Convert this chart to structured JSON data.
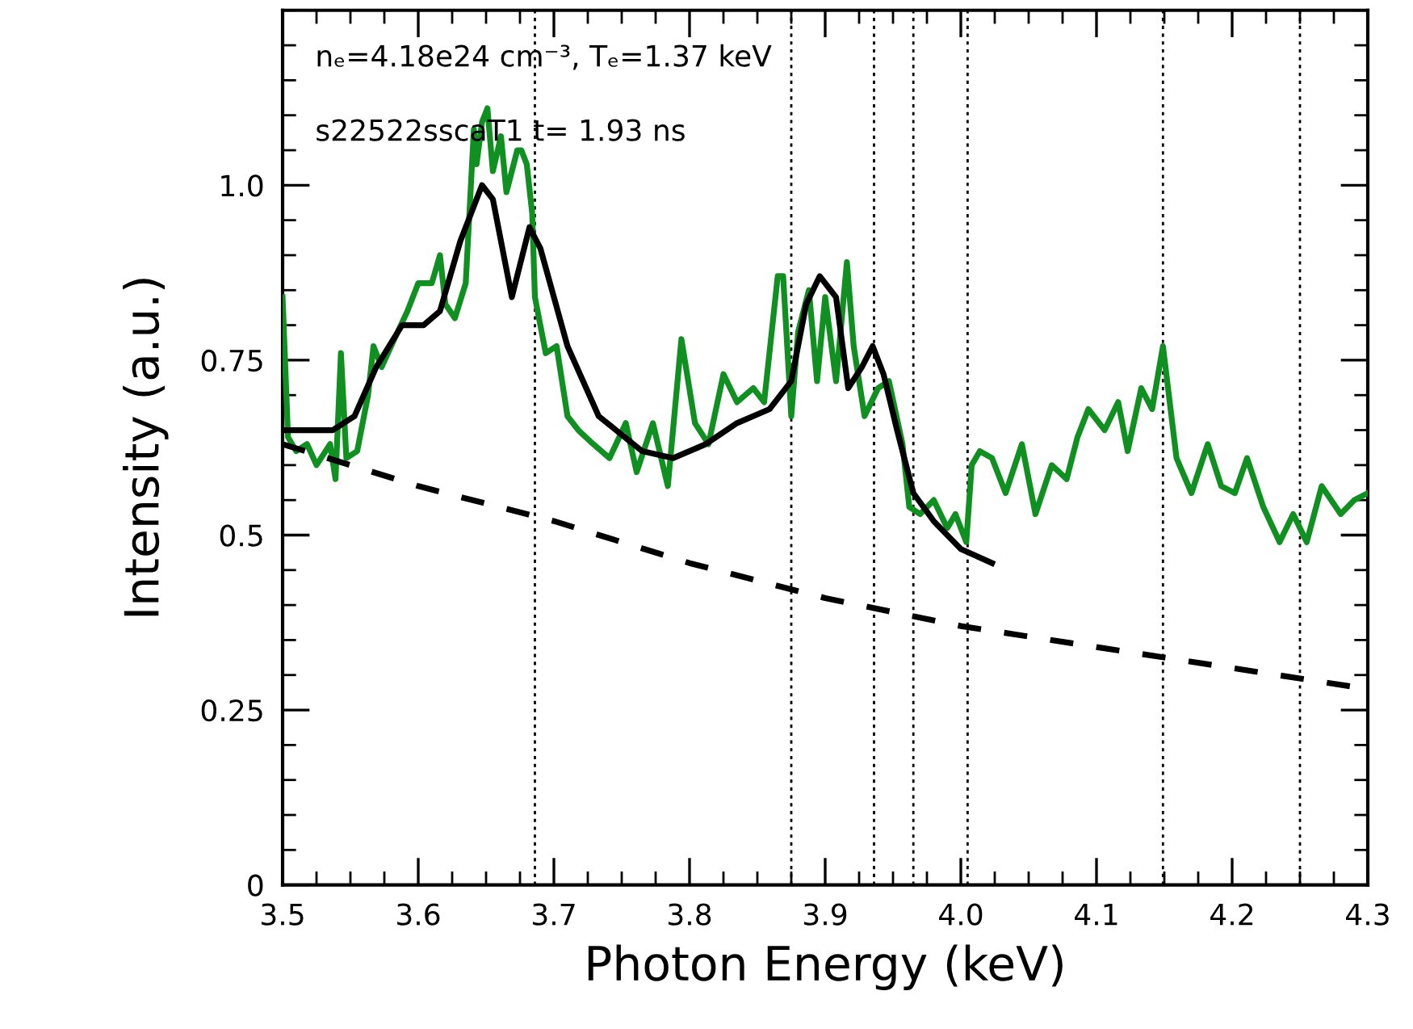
{
  "chart_data": {
    "type": "line",
    "xlabel": "Photon Energy (keV)",
    "ylabel": "Intensity (a.u.)",
    "annotations": [
      "nₑ=4.18e24 cm⁻³, Tₑ=1.37 keV",
      "s22522sscaT1 t= 1.93 ns"
    ],
    "xlim": [
      3.5,
      4.3
    ],
    "ylim": [
      0,
      1.25
    ],
    "xticks": [
      3.5,
      3.6,
      3.7,
      3.8,
      3.9,
      {
        "value": 4.0,
        "label": "4.0"
      },
      4.1,
      4.2,
      4.3
    ],
    "yticks": [
      {
        "value": 0,
        "label": "0"
      },
      0.25,
      0.5,
      0.75,
      {
        "value": 1.0,
        "label": "1.0"
      }
    ],
    "grid": false,
    "legend": false,
    "marker": "none",
    "series": [
      {
        "color": "#109020",
        "line_style": "solid",
        "x": [
          3.5,
          3.504,
          3.51,
          3.518,
          3.525,
          3.535,
          3.539,
          3.543,
          3.547,
          3.555,
          3.563,
          3.567,
          3.573,
          3.58,
          3.592,
          3.6,
          3.61,
          3.616,
          3.62,
          3.627,
          3.635,
          3.641,
          3.643,
          3.647,
          3.651,
          3.655,
          3.661,
          3.665,
          3.673,
          3.676,
          3.68,
          3.684,
          3.686,
          3.694,
          3.702,
          3.71,
          3.718,
          3.729,
          3.741,
          3.753,
          3.761,
          3.773,
          3.784,
          3.794,
          3.804,
          3.814,
          3.825,
          3.835,
          3.847,
          3.855,
          3.865,
          3.869,
          3.875,
          3.88,
          3.888,
          3.894,
          3.9,
          3.908,
          3.916,
          3.921,
          3.929,
          3.939,
          3.947,
          3.957,
          3.962,
          3.97,
          3.98,
          3.99,
          3.996,
          4.004,
          4.008,
          4.014,
          4.023,
          4.033,
          4.045,
          4.055,
          4.067,
          4.078,
          4.086,
          4.094,
          4.106,
          4.116,
          4.123,
          4.133,
          4.141,
          4.149,
          4.159,
          4.17,
          4.182,
          4.192,
          4.202,
          4.211,
          4.223,
          4.235,
          4.245,
          4.255,
          4.266,
          4.28,
          4.29,
          4.3
        ],
        "values": [
          0.84,
          0.64,
          0.62,
          0.63,
          0.6,
          0.63,
          0.58,
          0.76,
          0.61,
          0.62,
          0.7,
          0.77,
          0.74,
          0.77,
          0.82,
          0.86,
          0.86,
          0.9,
          0.83,
          0.81,
          0.86,
          1.08,
          1.03,
          1.09,
          1.11,
          1.02,
          1.07,
          0.99,
          1.05,
          1.05,
          1.03,
          0.96,
          0.84,
          0.76,
          0.77,
          0.67,
          0.65,
          0.63,
          0.61,
          0.66,
          0.59,
          0.66,
          0.57,
          0.78,
          0.66,
          0.63,
          0.73,
          0.69,
          0.71,
          0.69,
          0.87,
          0.87,
          0.67,
          0.79,
          0.85,
          0.72,
          0.84,
          0.72,
          0.89,
          0.77,
          0.67,
          0.71,
          0.72,
          0.63,
          0.54,
          0.53,
          0.55,
          0.51,
          0.53,
          0.49,
          0.6,
          0.62,
          0.61,
          0.56,
          0.63,
          0.53,
          0.6,
          0.58,
          0.64,
          0.68,
          0.65,
          0.69,
          0.62,
          0.71,
          0.68,
          0.77,
          0.61,
          0.56,
          0.63,
          0.57,
          0.56,
          0.61,
          0.54,
          0.49,
          0.53,
          0.49,
          0.57,
          0.53,
          0.55,
          0.56
        ]
      },
      {
        "color": "#000000",
        "line_style": "solid",
        "x": [
          3.5,
          3.537,
          3.553,
          3.569,
          3.588,
          3.604,
          3.616,
          3.631,
          3.647,
          3.655,
          3.669,
          3.682,
          3.69,
          3.71,
          3.733,
          3.765,
          3.788,
          3.812,
          3.835,
          3.859,
          3.875,
          3.886,
          3.896,
          3.908,
          3.917,
          3.927,
          3.935,
          3.943,
          3.953,
          3.965,
          3.98,
          4.0,
          4.023
        ],
        "values": [
          0.65,
          0.65,
          0.67,
          0.74,
          0.8,
          0.8,
          0.82,
          0.92,
          1.0,
          0.98,
          0.84,
          0.94,
          0.91,
          0.77,
          0.67,
          0.62,
          0.61,
          0.63,
          0.66,
          0.68,
          0.72,
          0.83,
          0.87,
          0.84,
          0.71,
          0.74,
          0.77,
          0.73,
          0.65,
          0.56,
          0.52,
          0.48,
          0.46
        ]
      },
      {
        "color": "#000000",
        "line_style": "dashed",
        "x": [
          3.5,
          3.6,
          3.7,
          3.8,
          3.9,
          4.0,
          4.1,
          4.2,
          4.3
        ],
        "values": [
          0.63,
          0.57,
          0.52,
          0.46,
          0.41,
          0.37,
          0.34,
          0.31,
          0.28
        ]
      }
    ],
    "ref_lines": [
      {
        "axis": "x",
        "value": 3.686,
        "color": "#000000",
        "line_style": "dotted"
      },
      {
        "axis": "x",
        "value": 3.875,
        "color": "#000000",
        "line_style": "dotted"
      },
      {
        "axis": "x",
        "value": 3.936,
        "color": "#000000",
        "line_style": "dotted"
      },
      {
        "axis": "x",
        "value": 3.965,
        "color": "#000000",
        "line_style": "dotted"
      },
      {
        "axis": "x",
        "value": 4.005,
        "color": "#000000",
        "line_style": "dotted"
      },
      {
        "axis": "x",
        "value": 4.149,
        "color": "#000000",
        "line_style": "dotted"
      },
      {
        "axis": "x",
        "value": 4.25,
        "color": "#000000",
        "line_style": "dotted"
      }
    ]
  }
}
